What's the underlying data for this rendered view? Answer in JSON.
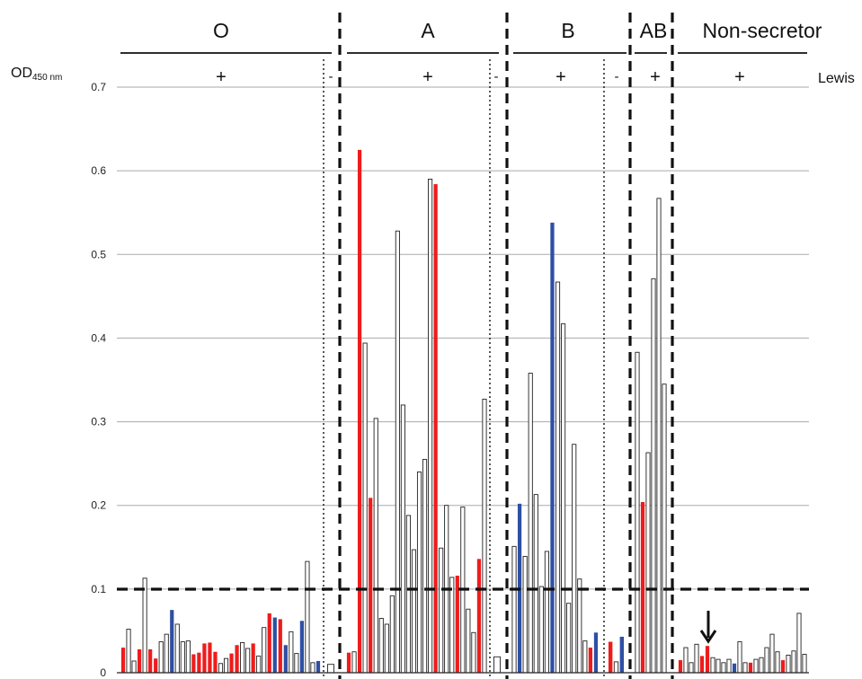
{
  "chart_data": {
    "type": "bar",
    "ylabel_main": "OD",
    "ylabel_sub": "450 nm",
    "right_label": "Lewis",
    "ylim": [
      0,
      0.7
    ],
    "yticks": [
      "0",
      "0.1",
      "0.2",
      "0.3",
      "0.4",
      "0.5",
      "0.6",
      "0.7"
    ],
    "ytick_values": [
      0,
      0.1,
      0.2,
      0.3,
      0.4,
      0.5,
      0.6,
      0.7
    ],
    "grid": true,
    "cutoff": 0.1,
    "colors": {
      "red": "#ee1c1c",
      "blue": "#2e4fa3",
      "white": "#ffffff",
      "outline": "#222222",
      "grid": "#aaaaaa"
    },
    "annotation": "arrow-down",
    "groups": [
      {
        "name": "O",
        "sections": [
          {
            "lewis": "+",
            "bars": [
              {
                "v": 0.03,
                "c": "red"
              },
              {
                "v": 0.052,
                "c": "white"
              },
              {
                "v": 0.014,
                "c": "white"
              },
              {
                "v": 0.028,
                "c": "red"
              },
              {
                "v": 0.113,
                "c": "white"
              },
              {
                "v": 0.028,
                "c": "red"
              },
              {
                "v": 0.017,
                "c": "red"
              },
              {
                "v": 0.037,
                "c": "white"
              },
              {
                "v": 0.046,
                "c": "white"
              },
              {
                "v": 0.075,
                "c": "blue"
              },
              {
                "v": 0.058,
                "c": "white"
              },
              {
                "v": 0.037,
                "c": "white"
              },
              {
                "v": 0.038,
                "c": "white"
              },
              {
                "v": 0.022,
                "c": "red"
              },
              {
                "v": 0.024,
                "c": "red"
              },
              {
                "v": 0.035,
                "c": "red"
              },
              {
                "v": 0.036,
                "c": "red"
              },
              {
                "v": 0.025,
                "c": "red"
              },
              {
                "v": 0.011,
                "c": "white"
              },
              {
                "v": 0.017,
                "c": "white"
              },
              {
                "v": 0.023,
                "c": "red"
              },
              {
                "v": 0.033,
                "c": "red"
              },
              {
                "v": 0.036,
                "c": "white"
              },
              {
                "v": 0.029,
                "c": "white"
              },
              {
                "v": 0.035,
                "c": "red"
              },
              {
                "v": 0.02,
                "c": "white"
              },
              {
                "v": 0.054,
                "c": "white"
              },
              {
                "v": 0.071,
                "c": "red"
              },
              {
                "v": 0.066,
                "c": "blue"
              },
              {
                "v": 0.064,
                "c": "red"
              },
              {
                "v": 0.033,
                "c": "blue"
              },
              {
                "v": 0.049,
                "c": "white"
              },
              {
                "v": 0.023,
                "c": "white"
              },
              {
                "v": 0.062,
                "c": "blue"
              },
              {
                "v": 0.133,
                "c": "white"
              },
              {
                "v": 0.012,
                "c": "white"
              },
              {
                "v": 0.014,
                "c": "blue"
              }
            ]
          },
          {
            "lewis": "-",
            "bars": [
              {
                "v": 0.01,
                "c": "white"
              }
            ]
          }
        ]
      },
      {
        "name": "A",
        "sections": [
          {
            "lewis": "+",
            "bars": [
              {
                "v": 0.024,
                "c": "red"
              },
              {
                "v": 0.025,
                "c": "white"
              },
              {
                "v": 0.625,
                "c": "red"
              },
              {
                "v": 0.394,
                "c": "white"
              },
              {
                "v": 0.209,
                "c": "red"
              },
              {
                "v": 0.304,
                "c": "white"
              },
              {
                "v": 0.065,
                "c": "white"
              },
              {
                "v": 0.058,
                "c": "white"
              },
              {
                "v": 0.092,
                "c": "white"
              },
              {
                "v": 0.528,
                "c": "white"
              },
              {
                "v": 0.32,
                "c": "white"
              },
              {
                "v": 0.188,
                "c": "white"
              },
              {
                "v": 0.147,
                "c": "white"
              },
              {
                "v": 0.24,
                "c": "white"
              },
              {
                "v": 0.255,
                "c": "white"
              },
              {
                "v": 0.59,
                "c": "white"
              },
              {
                "v": 0.584,
                "c": "red"
              },
              {
                "v": 0.149,
                "c": "white"
              },
              {
                "v": 0.2,
                "c": "white"
              },
              {
                "v": 0.114,
                "c": "white"
              },
              {
                "v": 0.116,
                "c": "red"
              },
              {
                "v": 0.198,
                "c": "white"
              },
              {
                "v": 0.076,
                "c": "white"
              },
              {
                "v": 0.048,
                "c": "white"
              },
              {
                "v": 0.136,
                "c": "red"
              },
              {
                "v": 0.327,
                "c": "white"
              }
            ]
          },
          {
            "lewis": "-",
            "bars": [
              {
                "v": 0.019,
                "c": "white"
              }
            ]
          }
        ]
      },
      {
        "name": "B",
        "sections": [
          {
            "lewis": "+",
            "bars": [
              {
                "v": 0.151,
                "c": "white"
              },
              {
                "v": 0.202,
                "c": "blue"
              },
              {
                "v": 0.139,
                "c": "white"
              },
              {
                "v": 0.358,
                "c": "white"
              },
              {
                "v": 0.213,
                "c": "white"
              },
              {
                "v": 0.103,
                "c": "white"
              },
              {
                "v": 0.145,
                "c": "white"
              },
              {
                "v": 0.538,
                "c": "blue"
              },
              {
                "v": 0.467,
                "c": "white"
              },
              {
                "v": 0.417,
                "c": "white"
              },
              {
                "v": 0.083,
                "c": "white"
              },
              {
                "v": 0.273,
                "c": "white"
              },
              {
                "v": 0.112,
                "c": "white"
              },
              {
                "v": 0.038,
                "c": "white"
              },
              {
                "v": 0.03,
                "c": "red"
              },
              {
                "v": 0.048,
                "c": "blue"
              }
            ]
          },
          {
            "lewis": "-",
            "bars": [
              {
                "v": 0.037,
                "c": "red"
              },
              {
                "v": 0.013,
                "c": "white"
              },
              {
                "v": 0.043,
                "c": "blue"
              }
            ]
          }
        ]
      },
      {
        "name": "AB",
        "sections": [
          {
            "lewis": "+",
            "bars": [
              {
                "v": 0.383,
                "c": "white"
              },
              {
                "v": 0.204,
                "c": "red"
              },
              {
                "v": 0.263,
                "c": "white"
              },
              {
                "v": 0.471,
                "c": "white"
              },
              {
                "v": 0.567,
                "c": "white"
              },
              {
                "v": 0.345,
                "c": "white"
              }
            ]
          }
        ]
      },
      {
        "name": "Non-secretor",
        "sections": [
          {
            "lewis": "+",
            "bars": [
              {
                "v": 0.015,
                "c": "red"
              },
              {
                "v": 0.03,
                "c": "white"
              },
              {
                "v": 0.012,
                "c": "white"
              },
              {
                "v": 0.034,
                "c": "white"
              },
              {
                "v": 0.02,
                "c": "red"
              },
              {
                "v": 0.032,
                "c": "red"
              },
              {
                "v": 0.018,
                "c": "white"
              },
              {
                "v": 0.016,
                "c": "white"
              },
              {
                "v": 0.012,
                "c": "white"
              },
              {
                "v": 0.016,
                "c": "white"
              },
              {
                "v": 0.011,
                "c": "blue"
              },
              {
                "v": 0.037,
                "c": "white"
              },
              {
                "v": 0.012,
                "c": "white"
              },
              {
                "v": 0.012,
                "c": "red"
              },
              {
                "v": 0.016,
                "c": "white"
              },
              {
                "v": 0.018,
                "c": "white"
              },
              {
                "v": 0.03,
                "c": "white"
              },
              {
                "v": 0.046,
                "c": "white"
              },
              {
                "v": 0.025,
                "c": "white"
              },
              {
                "v": 0.015,
                "c": "red"
              },
              {
                "v": 0.021,
                "c": "white"
              },
              {
                "v": 0.026,
                "c": "white"
              },
              {
                "v": 0.071,
                "c": "white"
              },
              {
                "v": 0.022,
                "c": "white"
              }
            ]
          }
        ]
      }
    ]
  }
}
